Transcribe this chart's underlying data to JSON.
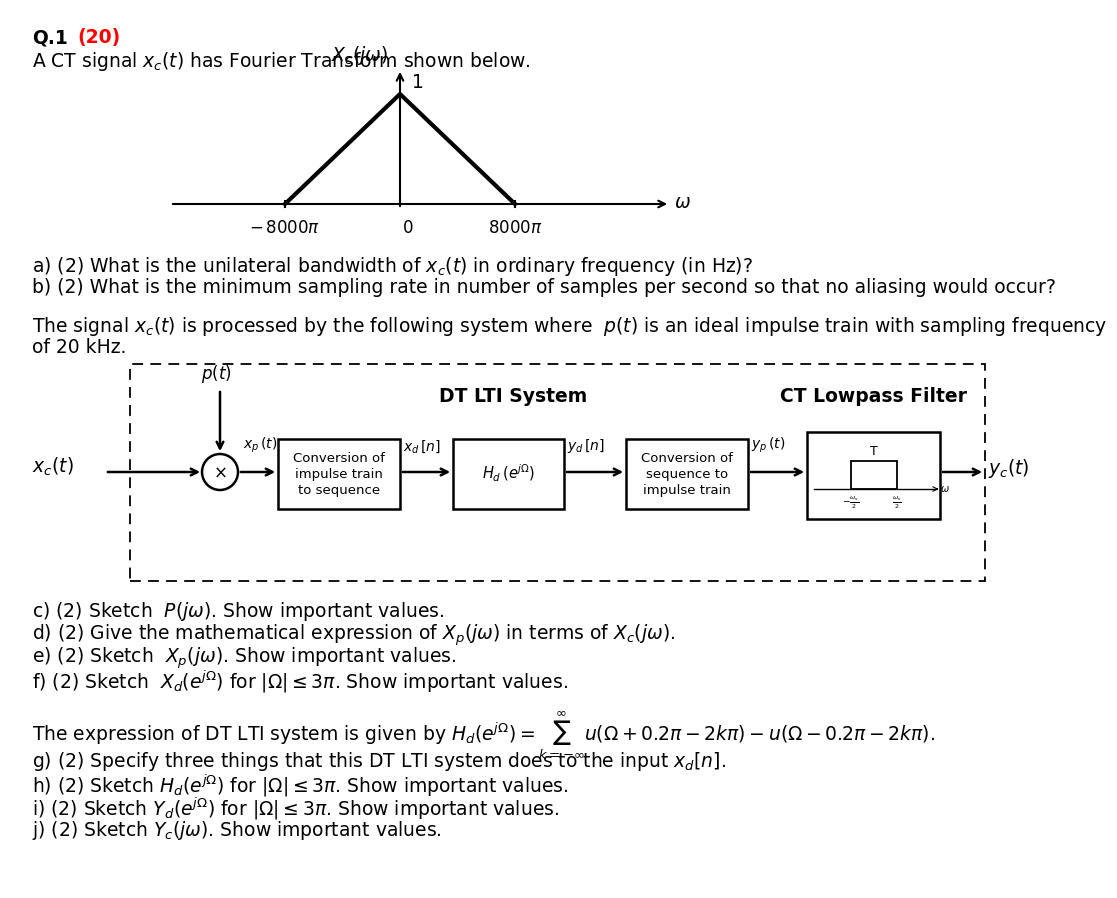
{
  "title_color": "#FF0000",
  "bg_color": "#FFFFFF",
  "text_color": "#000000",
  "dt_lti_label": "DT LTI System",
  "ct_lpf_label": "CT Lowpass Filter",
  "q_a": "a) (2) What is the unilateral bandwidth of $x_c(t)$ in ordinary frequency (in Hz)?",
  "q_b": "b) (2) What is the minimum sampling rate in number of samples per second so that no aliasing would occur?",
  "q_c": "c) (2) Sketch  $P(j\\omega)$. Show important values.",
  "q_d": "d) (2) Give the mathematical expression of $X_p(j\\omega)$ in terms of $X_c(j\\omega)$.",
  "q_e": "e) (2) Sketch  $X_p(j\\omega)$. Show important values.",
  "q_f": "f) (2) Sketch  $X_d(e^{j\\Omega})$ for $|\\Omega| \\leq 3\\pi$. Show important values.",
  "dt_expr": "The expression of DT LTI system is given by $H_d(e^{j\\Omega}) = \\sum_{k=-\\infty}^{\\infty} u(\\Omega + 0.2\\pi - 2k\\pi) - u(\\Omega - 0.2\\pi - 2k\\pi)$.",
  "q_g": "g) (2) Specify three things that this DT LTI system does to the input $x_d[n]$.",
  "q_h": "h) (2) Sketch $H_d(e^{j\\Omega})$ for $|\\Omega| \\leq 3\\pi$. Show important values.",
  "q_i": "i) (2) Sketch $Y_d(e^{j\\Omega})$ for $|\\Omega| \\leq 3\\pi$. Show important values.",
  "q_j": "j) (2) Sketch $Y_c(j\\omega)$. Show important values."
}
